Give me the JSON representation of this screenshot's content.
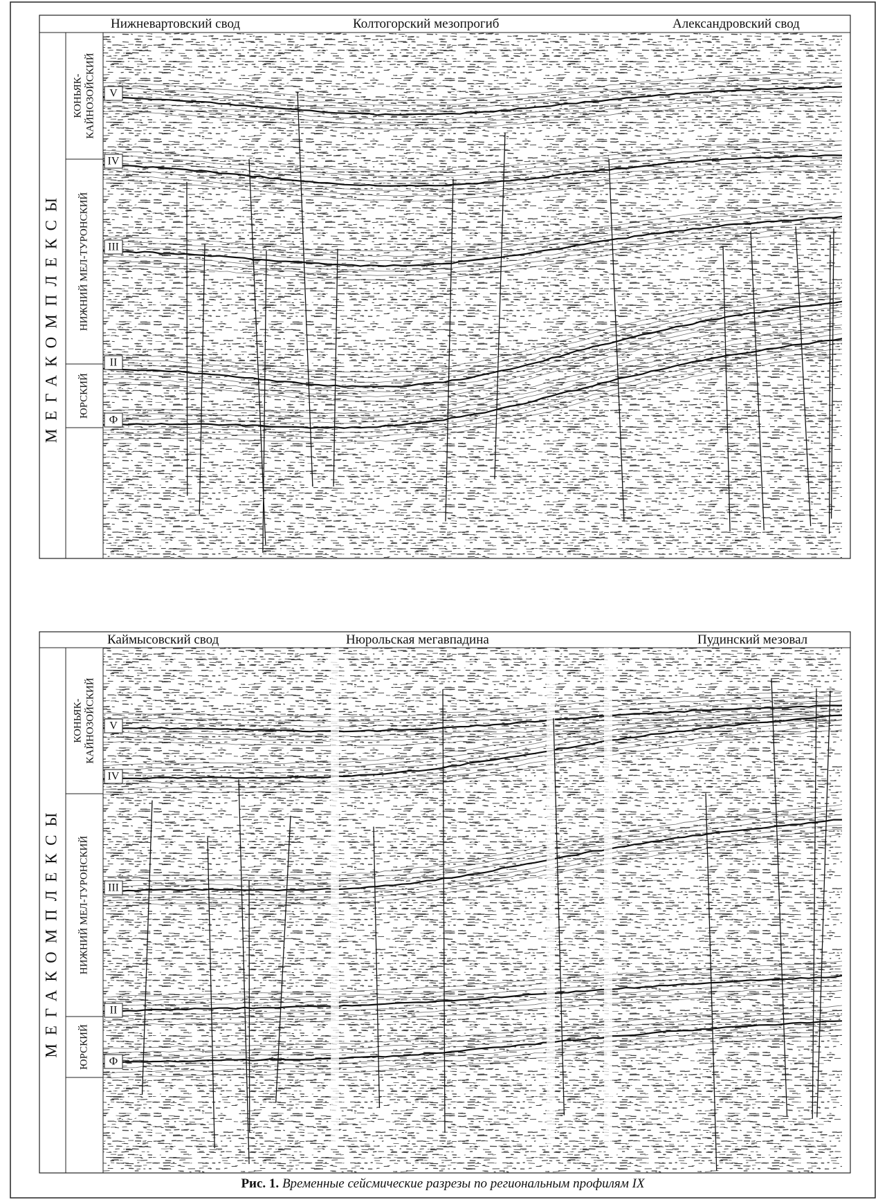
{
  "panels": [
    {
      "regions": [
        "Нижневартовский свод",
        "Колтогорский мезопрогиб",
        "Александровский свод"
      ],
      "megacomplex": "МЕГАКОМПЛЕКСЫ",
      "complexes": [
        {
          "lines": [
            "КОНЬЯК-",
            "КАЙНОЗОЙСКИЙ"
          ]
        },
        {
          "lines": [
            "НИЖНИЙ МЕЛ-ТУРОНСКИЙ"
          ]
        },
        {
          "lines": [
            "ЮРСКИЙ"
          ]
        }
      ],
      "horizons": [
        "V",
        "IV",
        "III",
        "II",
        "Ф"
      ]
    },
    {
      "regions": [
        "Каймысовский свод",
        "Нюрольская мегавпадина",
        "Пудинский мезовал"
      ],
      "megacomplex": "МЕГАКОМПЛЕКСЫ",
      "complexes": [
        {
          "lines": [
            "КОНЬЯК-",
            "КАЙНОЗОЙСКИЙ"
          ]
        },
        {
          "lines": [
            "НИЖНИЙ МЕЛ-ТУРОНСКИЙ"
          ]
        },
        {
          "lines": [
            "ЮРСКИЙ"
          ]
        }
      ],
      "horizons": [
        "V",
        "IV",
        "III",
        "II",
        "Ф"
      ]
    }
  ],
  "caption": {
    "label": "Рис. 1.",
    "text": "Временные сейсмические разрезы по региональным профилям IX"
  }
}
